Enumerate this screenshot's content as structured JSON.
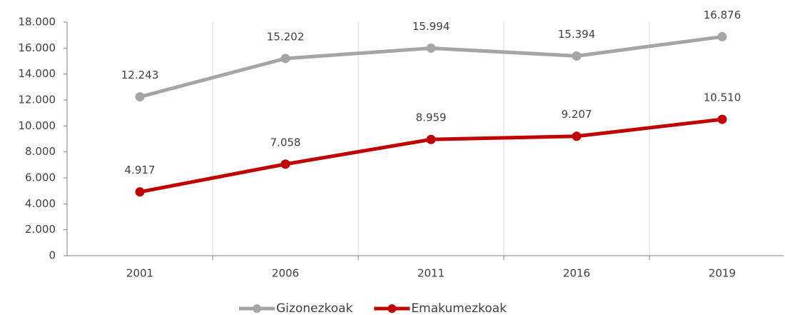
{
  "chart_data": {
    "type": "line",
    "categories": [
      "2001",
      "2006",
      "2011",
      "2016",
      "2019"
    ],
    "series": [
      {
        "name": "Gizonezkoak",
        "color": "#a5a5a5",
        "values": [
          12243,
          15202,
          15994,
          15394,
          16876
        ],
        "value_labels": [
          "12.243",
          "15.202",
          "15.994",
          "15.394",
          "16.876"
        ]
      },
      {
        "name": "Emakumezkoak",
        "color": "#c00000",
        "values": [
          4917,
          7058,
          8959,
          9207,
          10510
        ],
        "value_labels": [
          "4.917",
          "7.058",
          "8.959",
          "9.207",
          "10.510"
        ]
      }
    ],
    "ylim": [
      0,
      18000
    ],
    "yticks": [
      0,
      {
        "value": 2000,
        "label": "2.000"
      },
      {
        "value": 4000,
        "label": "4.000"
      },
      {
        "value": 6000,
        "label": "6.000"
      },
      {
        "value": 8000,
        "label": "8.000"
      },
      {
        "value": 10000,
        "label": "10.000"
      },
      {
        "value": 12000,
        "label": "12.000"
      },
      {
        "value": 14000,
        "label": "14.000"
      },
      {
        "value": 16000,
        "label": "16.000"
      },
      {
        "value": 18000,
        "label": "18.000"
      }
    ],
    "grid": "x",
    "legend": "bottom"
  }
}
